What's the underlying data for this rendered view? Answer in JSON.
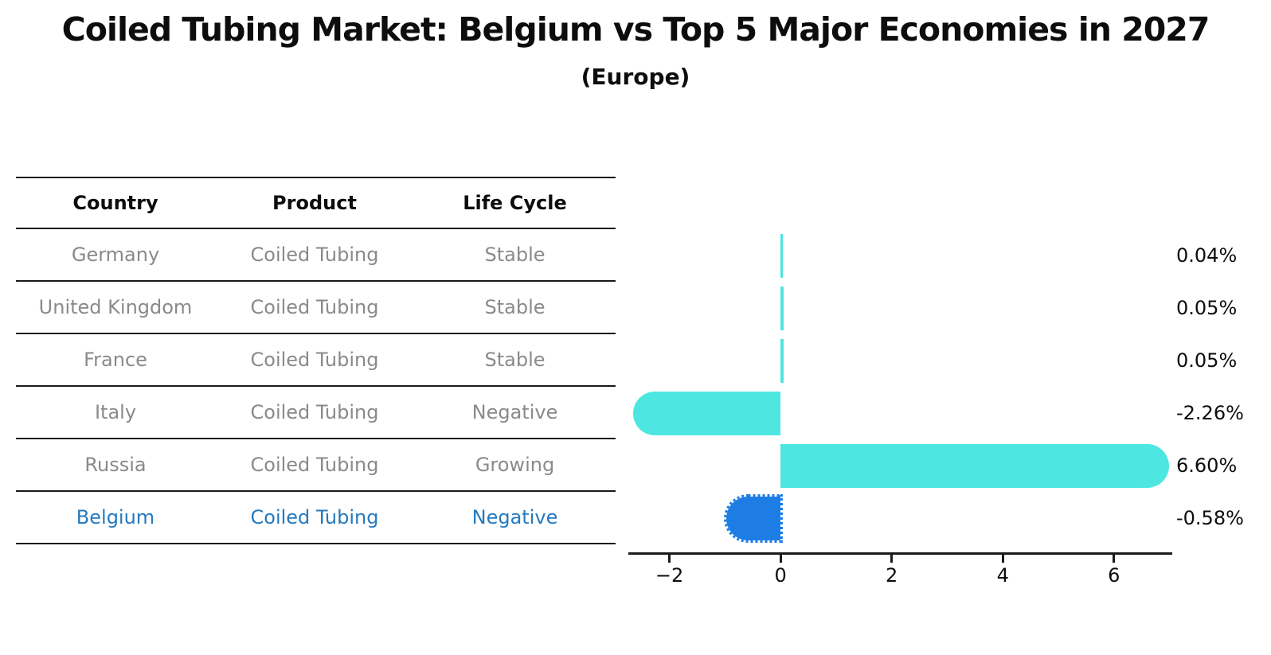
{
  "title": "Coiled Tubing Market: Belgium vs Top 5 Major Economies in 2027",
  "subtitle": "(Europe)",
  "table": {
    "headers": [
      "Country",
      "Product",
      "Life Cycle"
    ],
    "rows": [
      {
        "country": "Germany",
        "product": "Coiled Tubing",
        "life_cycle": "Stable",
        "highlight": false
      },
      {
        "country": "United Kingdom",
        "product": "Coiled Tubing",
        "life_cycle": "Stable",
        "highlight": false
      },
      {
        "country": "France",
        "product": "Coiled Tubing",
        "life_cycle": "Stable",
        "highlight": false
      },
      {
        "country": "Italy",
        "product": "Coiled Tubing",
        "life_cycle": "Negative",
        "highlight": false
      },
      {
        "country": "Russia",
        "product": "Coiled Tubing",
        "life_cycle": "Growing",
        "highlight": false
      },
      {
        "country": "Belgium",
        "product": "Coiled Tubing",
        "life_cycle": "Negative",
        "highlight": true
      }
    ]
  },
  "chart_data": {
    "type": "bar",
    "orientation": "horizontal",
    "title": "Coiled Tubing Market: Belgium vs Top 5 Major Economies in 2027 (Europe)",
    "categories": [
      "Germany",
      "United Kingdom",
      "France",
      "Italy",
      "Russia",
      "Belgium"
    ],
    "values": [
      0.04,
      0.05,
      0.05,
      -2.26,
      6.6,
      -0.58
    ],
    "value_labels": [
      "0.04%",
      "0.05%",
      "0.05%",
      "-2.26%",
      "6.60%",
      "-0.58%"
    ],
    "xticks": [
      -2,
      0,
      2,
      4,
      6
    ],
    "xtick_labels": [
      "−2",
      "0",
      "2",
      "4",
      "6"
    ],
    "xlim": [
      -2.74,
      7.05
    ],
    "grid": false,
    "legend": false,
    "bar_color": "#4de6e0",
    "highlight_bar_color": "#1e7de5",
    "highlight_index": 5
  },
  "colors": {
    "bar_cyan": "#4de6e0",
    "bar_blue": "#1e7de5",
    "highlight_text": "#2579be",
    "row_text": "#8a8a8a",
    "header_text": "#0d0d0d",
    "axis": "#1a1a1a",
    "background": "#ffffff"
  }
}
